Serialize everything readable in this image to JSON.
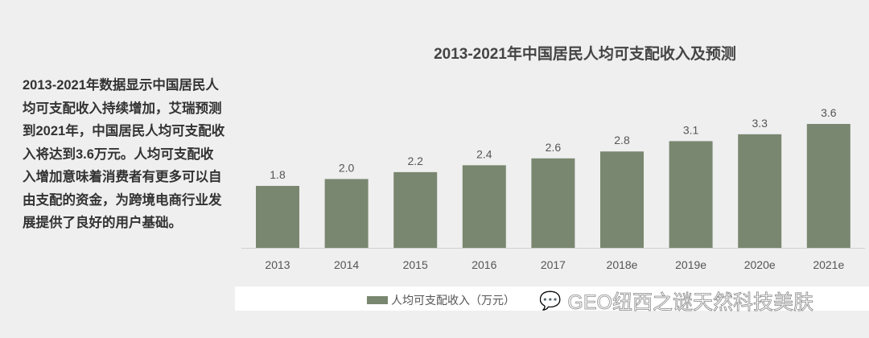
{
  "description": "2013-2021年数据显示中国居民人均可支配收入持续增加，艾瑞预测到2021年，中国居民人均可支配收入将达到3.6万元。人均可支配收入增加意味着消费者有更多可以自由支配的资金，为跨境电商行业发展提供了良好的用户基础。",
  "watermark": "GEO纽西之谜天然科技美肤",
  "chart_data": {
    "type": "bar",
    "title": "2013-2021年中国居民人均可支配收入及预测",
    "categories": [
      "2013",
      "2014",
      "2015",
      "2016",
      "2017",
      "2018e",
      "2019e",
      "2020e",
      "2021e"
    ],
    "series": [
      {
        "name": "人均可支配收入（万元）",
        "values": [
          1.8,
          2.0,
          2.2,
          2.4,
          2.6,
          2.8,
          3.1,
          3.3,
          3.6
        ],
        "labels": [
          "1.8",
          "2.0",
          "2.2",
          "2.4",
          "2.6",
          "2.8",
          "3.1",
          "3.3",
          "3.6"
        ],
        "color": "#7a8770"
      }
    ],
    "xlabel": "",
    "ylabel": "",
    "ylim": [
      0,
      3.6
    ],
    "grid": false,
    "legend": "bottom"
  }
}
